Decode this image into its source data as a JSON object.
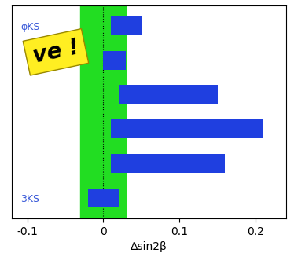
{
  "chart_data": {
    "type": "bar",
    "orientation": "horizontal",
    "x_label": "Δsin2β",
    "categories": [
      "φKS",
      null,
      null,
      null,
      null,
      "3KS"
    ],
    "values": [
      [
        0.01,
        0.05
      ],
      [
        0.0,
        0.03
      ],
      [
        0.02,
        0.15
      ],
      [
        0.01,
        0.21
      ],
      [
        0.01,
        0.16
      ],
      [
        -0.02,
        0.02
      ]
    ],
    "color": "#1f3fe0",
    "band": [
      -0.03,
      0.03
    ],
    "band_color": "#22dd22",
    "reference_line": 0,
    "annotation": "ve !",
    "xlim": [
      -0.12,
      0.24
    ],
    "xticks": [
      -0.1,
      0,
      0.1,
      0.2
    ]
  }
}
